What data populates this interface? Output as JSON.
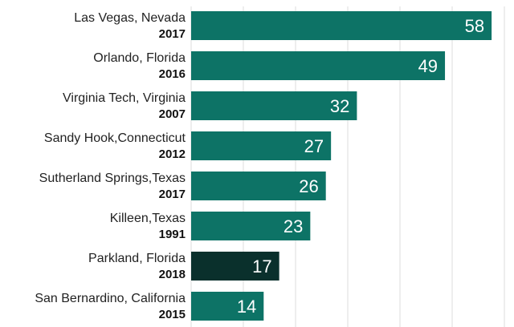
{
  "chart_data": {
    "type": "bar",
    "orientation": "horizontal",
    "categories": [
      {
        "place": "Las Vegas, Nevada",
        "year": "2017"
      },
      {
        "place": "Orlando, Florida",
        "year": "2016"
      },
      {
        "place": "Virginia Tech, Virginia",
        "year": "2007"
      },
      {
        "place": "Sandy Hook,Connecticut",
        "year": "2012"
      },
      {
        "place": "Sutherland Springs,Texas",
        "year": "2017"
      },
      {
        "place": "Killeen,Texas",
        "year": "1991"
      },
      {
        "place": "Parkland, Florida",
        "year": "2018"
      },
      {
        "place": "San Bernardino, California",
        "year": "2015"
      }
    ],
    "values": [
      58,
      49,
      32,
      27,
      26,
      23,
      17,
      14
    ],
    "title": "",
    "xlabel": "",
    "ylabel": "",
    "xlim": [
      0,
      60
    ],
    "grid": true,
    "colors": {
      "default_bar": "#0d7366",
      "highlight_bar": "#0a302c",
      "highlight_index": 6,
      "value_text": "#ffffff",
      "grid": "#dcdcdc"
    }
  }
}
